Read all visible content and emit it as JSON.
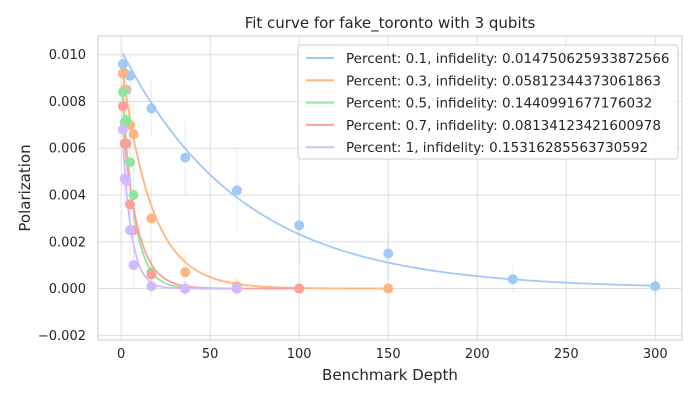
{
  "chart_data": {
    "type": "scatter",
    "title": "Fit curve for fake_toronto with 3 qubits",
    "xlabel": "Benchmark Depth",
    "ylabel": "Polarization",
    "xlim": [
      -13,
      315
    ],
    "ylim": [
      -0.0022,
      0.0108
    ],
    "xticks": [
      0,
      50,
      100,
      150,
      200,
      250,
      300
    ],
    "xtick_labels": [
      "0",
      "50",
      "100",
      "150",
      "200",
      "250",
      "300"
    ],
    "yticks": [
      -0.002,
      0.0,
      0.002,
      0.004,
      0.006,
      0.008,
      0.01
    ],
    "ytick_labels": [
      "−0.002",
      "0.000",
      "0.002",
      "0.004",
      "0.006",
      "0.008",
      "0.010"
    ],
    "grid": true,
    "legend_position": "top-right",
    "series": [
      {
        "name": "Percent: 0.1, infidelity: 0.014750625933872566",
        "color": "#a1c9f4",
        "fit_amplitude": 0.0102,
        "fit_rate": 0.0148,
        "fit_xmax": 300,
        "x": [
          1,
          2,
          3,
          5,
          17,
          36,
          65,
          100,
          150,
          220,
          300
        ],
        "y": [
          0.0096,
          0.0092,
          0.0085,
          0.0091,
          0.0077,
          0.0056,
          0.0042,
          0.0027,
          0.0015,
          0.0004,
          0.0001
        ],
        "err": [
          0.0006,
          0.0006,
          0.0008,
          0.0009,
          0.0012,
          0.0016,
          0.0018,
          0.0016,
          0.001,
          0.0006,
          0.0004
        ]
      },
      {
        "name": "Percent: 0.3, infidelity: 0.05812344373061863",
        "color": "#ffb482",
        "fit_amplitude": 0.0098,
        "fit_rate": 0.06,
        "fit_xmax": 150,
        "x": [
          1,
          2,
          3,
          5,
          7,
          17,
          36,
          65,
          100,
          150
        ],
        "y": [
          0.0092,
          0.0085,
          0.0072,
          0.007,
          0.0066,
          0.003,
          0.0007,
          0.0001,
          0.0,
          -0.0
        ],
        "err": [
          0.0008,
          0.001,
          0.0012,
          0.0014,
          0.0016,
          0.0014,
          0.0008,
          0.0004,
          0.0002,
          0.0002
        ]
      },
      {
        "name": "Percent: 0.5, infidelity: 0.1440991677176032",
        "color": "#8de5a1",
        "fit_amplitude": 0.0095,
        "fit_rate": 0.15,
        "fit_xmax": 65,
        "x": [
          1,
          2,
          3,
          5,
          7,
          17,
          36,
          65
        ],
        "y": [
          0.0084,
          0.0071,
          0.0072,
          0.0054,
          0.004,
          0.0007,
          0.0,
          0.0
        ],
        "err": [
          0.001,
          0.0012,
          0.0014,
          0.0015,
          0.0014,
          0.0008,
          0.0003,
          0.0002
        ]
      },
      {
        "name": "Percent: 0.7, infidelity: 0.08134123421600978",
        "color": "#ff9f9b",
        "fit_amplitude": 0.008,
        "fit_rate": 0.12,
        "fit_xmax": 100,
        "x": [
          1,
          2,
          3,
          5,
          7,
          17,
          36,
          65,
          100
        ],
        "y": [
          0.0078,
          0.0062,
          0.0062,
          0.0036,
          0.0025,
          0.0006,
          0.0,
          0.0,
          0.0
        ],
        "err": [
          0.001,
          0.0012,
          0.0013,
          0.0013,
          0.0012,
          0.0007,
          0.0003,
          0.0002,
          0.0002
        ]
      },
      {
        "name": "Percent: 1, infidelity: 0.15316285563730592",
        "color": "#d0bbff",
        "fit_amplitude": 0.0076,
        "fit_rate": 0.2,
        "fit_xmax": 65,
        "x": [
          1,
          2,
          3,
          5,
          7,
          17,
          36,
          65
        ],
        "y": [
          0.0068,
          0.0047,
          0.0046,
          0.0025,
          0.001,
          0.0001,
          0.0,
          0.0
        ],
        "err": [
          0.001,
          0.0011,
          0.0012,
          0.0012,
          0.001,
          0.0005,
          0.0003,
          0.0002
        ]
      }
    ]
  }
}
